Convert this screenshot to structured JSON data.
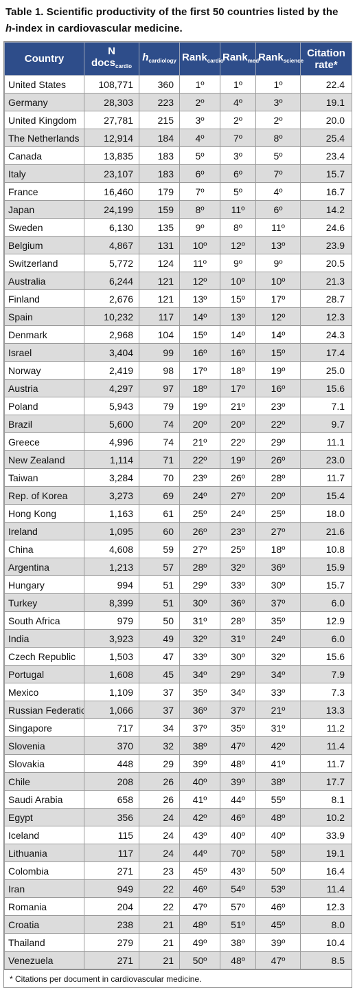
{
  "caption": {
    "prefix": "Table 1. Scientific productivity of the first 50 countries listed by the ",
    "h": "h",
    "suffix": "-index in cardiovascular medicine."
  },
  "headers": {
    "country": "Country",
    "ndocs": "N docs",
    "ndocs_sub": "cardio",
    "h": "h",
    "h_sub": "cardiology",
    "rank_cardio": "Rank",
    "rank_cardio_sub": "cardio",
    "rank_med": "Rank",
    "rank_med_sub": "med",
    "rank_science": "Rank",
    "rank_science_sub": "science",
    "citation_rate": "Citation rate*"
  },
  "rows": [
    [
      "United States",
      "108,771",
      "360",
      "1º",
      "1º",
      "1º",
      "22.4"
    ],
    [
      "Germany",
      "28,303",
      "223",
      "2º",
      "4º",
      "3º",
      "19.1"
    ],
    [
      "United Kingdom",
      "27,781",
      "215",
      "3º",
      "2º",
      "2º",
      "20.0"
    ],
    [
      "The Netherlands",
      "12,914",
      "184",
      "4º",
      "7º",
      "8º",
      "25.4"
    ],
    [
      "Canada",
      "13,835",
      "183",
      "5º",
      "3º",
      "5º",
      "23.4"
    ],
    [
      "Italy",
      "23,107",
      "183",
      "6º",
      "6º",
      "7º",
      "15.7"
    ],
    [
      "France",
      "16,460",
      "179",
      "7º",
      "5º",
      "4º",
      "16.7"
    ],
    [
      "Japan",
      "24,199",
      "159",
      "8º",
      "11º",
      "6º",
      "14.2"
    ],
    [
      "Sweden",
      "6,130",
      "135",
      "9º",
      "8º",
      "11º",
      "24.6"
    ],
    [
      "Belgium",
      "4,867",
      "131",
      "10º",
      "12º",
      "13º",
      "23.9"
    ],
    [
      "Switzerland",
      "5,772",
      "124",
      "11º",
      "9º",
      "9º",
      "20.5"
    ],
    [
      "Australia",
      "6,244",
      "121",
      "12º",
      "10º",
      "10º",
      "21.3"
    ],
    [
      "Finland",
      "2,676",
      "121",
      "13º",
      "15º",
      "17º",
      "28.7"
    ],
    [
      "Spain",
      "10,232",
      "117",
      "14º",
      "13º",
      "12º",
      "12.3"
    ],
    [
      "Denmark",
      "2,968",
      "104",
      "15º",
      "14º",
      "14º",
      "24.3"
    ],
    [
      "Israel",
      "3,404",
      "99",
      "16º",
      "16º",
      "15º",
      "17.4"
    ],
    [
      "Norway",
      "2,419",
      "98",
      "17º",
      "18º",
      "19º",
      "25.0"
    ],
    [
      "Austria",
      "4,297",
      "97",
      "18º",
      "17º",
      "16º",
      "15.6"
    ],
    [
      "Poland",
      "5,943",
      "79",
      "19º",
      "21º",
      "23º",
      "7.1"
    ],
    [
      "Brazil",
      "5,600",
      "74",
      "20º",
      "20º",
      "22º",
      "9.7"
    ],
    [
      "Greece",
      "4,996",
      "74",
      "21º",
      "22º",
      "29º",
      "11.1"
    ],
    [
      "New Zealand",
      "1,114",
      "71",
      "22º",
      "19º",
      "26º",
      "23.0"
    ],
    [
      "Taiwan",
      "3,284",
      "70",
      "23º",
      "26º",
      "28º",
      "11.7"
    ],
    [
      "Rep. of Korea",
      "3,273",
      "69",
      "24º",
      "27º",
      "20º",
      "15.4"
    ],
    [
      "Hong Kong",
      "1,163",
      "61",
      "25º",
      "24º",
      "25º",
      "18.0"
    ],
    [
      "Ireland",
      "1,095",
      "60",
      "26º",
      "23º",
      "27º",
      "21.6"
    ],
    [
      "China",
      "4,608",
      "59",
      "27º",
      "25º",
      "18º",
      "10.8"
    ],
    [
      "Argentina",
      "1,213",
      "57",
      "28º",
      "32º",
      "36º",
      "15.9"
    ],
    [
      "Hungary",
      "994",
      "51",
      "29º",
      "33º",
      "30º",
      "15.7"
    ],
    [
      "Turkey",
      "8,399",
      "51",
      "30º",
      "36º",
      "37º",
      "6.0"
    ],
    [
      "South Africa",
      "979",
      "50",
      "31º",
      "28º",
      "35º",
      "12.9"
    ],
    [
      "India",
      "3,923",
      "49",
      "32º",
      "31º",
      "24º",
      "6.0"
    ],
    [
      "Czech Republic",
      "1,503",
      "47",
      "33º",
      "30º",
      "32º",
      "15.6"
    ],
    [
      "Portugal",
      "1,608",
      "45",
      "34º",
      "29º",
      "34º",
      "7.9"
    ],
    [
      "Mexico",
      "1,109",
      "37",
      "35º",
      "34º",
      "33º",
      "7.3"
    ],
    [
      "Russian Federation",
      "1,066",
      "37",
      "36º",
      "37º",
      "21º",
      "13.3"
    ],
    [
      "Singapore",
      "717",
      "34",
      "37º",
      "35º",
      "31º",
      "11.2"
    ],
    [
      "Slovenia",
      "370",
      "32",
      "38º",
      "47º",
      "42º",
      "11.4"
    ],
    [
      "Slovakia",
      "448",
      "29",
      "39º",
      "48º",
      "41º",
      "11.7"
    ],
    [
      "Chile",
      "208",
      "26",
      "40º",
      "39º",
      "38º",
      "17.7"
    ],
    [
      "Saudi Arabia",
      "658",
      "26",
      "41º",
      "44º",
      "55º",
      "8.1"
    ],
    [
      "Egypt",
      "356",
      "24",
      "42º",
      "46º",
      "48º",
      "10.2"
    ],
    [
      "Iceland",
      "115",
      "24",
      "43º",
      "40º",
      "40º",
      "33.9"
    ],
    [
      "Lithuania",
      "117",
      "24",
      "44º",
      "70º",
      "58º",
      "19.1"
    ],
    [
      "Colombia",
      "271",
      "23",
      "45º",
      "43º",
      "50º",
      "16.4"
    ],
    [
      "Iran",
      "949",
      "22",
      "46º",
      "54º",
      "53º",
      "11.4"
    ],
    [
      "Romania",
      "204",
      "22",
      "47º",
      "57º",
      "46º",
      "12.3"
    ],
    [
      "Croatia",
      "238",
      "21",
      "48º",
      "51º",
      "45º",
      "8.0"
    ],
    [
      "Thailand",
      "279",
      "21",
      "49º",
      "38º",
      "39º",
      "10.4"
    ],
    [
      "Venezuela",
      "271",
      "21",
      "50º",
      "48º",
      "47º",
      "8.5"
    ]
  ],
  "footnote": "* Citations per document in cardiovascular medicine."
}
